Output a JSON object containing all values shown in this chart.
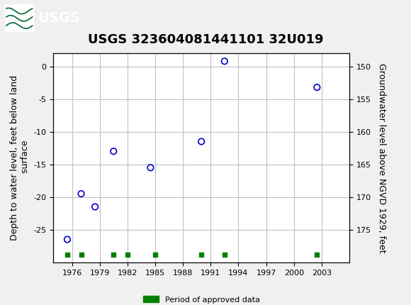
{
  "title": "USGS 323604081441101 32U019",
  "ylabel_left": "Depth to water level, feet below land\n surface",
  "ylabel_right": "Groundwater level above NGVD 1929, feet",
  "scatter_x": [
    1975.5,
    1977.0,
    1978.5,
    1980.5,
    1984.5,
    1990.0,
    1992.5,
    2002.5
  ],
  "scatter_y": [
    -26.5,
    -19.5,
    -21.5,
    -13.0,
    -15.5,
    -11.5,
    0.8,
    -3.2
  ],
  "green_x": [
    1975.5,
    1977.0,
    1980.5,
    1982.0,
    1985.0,
    1990.0,
    1992.5,
    2002.5
  ],
  "green_bottom": -28.8,
  "xlim": [
    1974,
    2006
  ],
  "ylim": [
    -30,
    2
  ],
  "xticks": [
    1976,
    1979,
    1982,
    1985,
    1988,
    1991,
    1994,
    1997,
    2000,
    2003
  ],
  "yticks_left": [
    -25,
    -20,
    -15,
    -10,
    -5,
    0
  ],
  "yticks_right": [
    175,
    170,
    165,
    160,
    155,
    150
  ],
  "scatter_color": "#0000cc",
  "green_color": "#008000",
  "fig_facecolor": "#f0f0f0",
  "header_color": "#006633",
  "grid_color": "#c0c0c0",
  "title_fontsize": 13,
  "label_fontsize": 9,
  "tick_fontsize": 8,
  "legend_label": "Period of approved data"
}
